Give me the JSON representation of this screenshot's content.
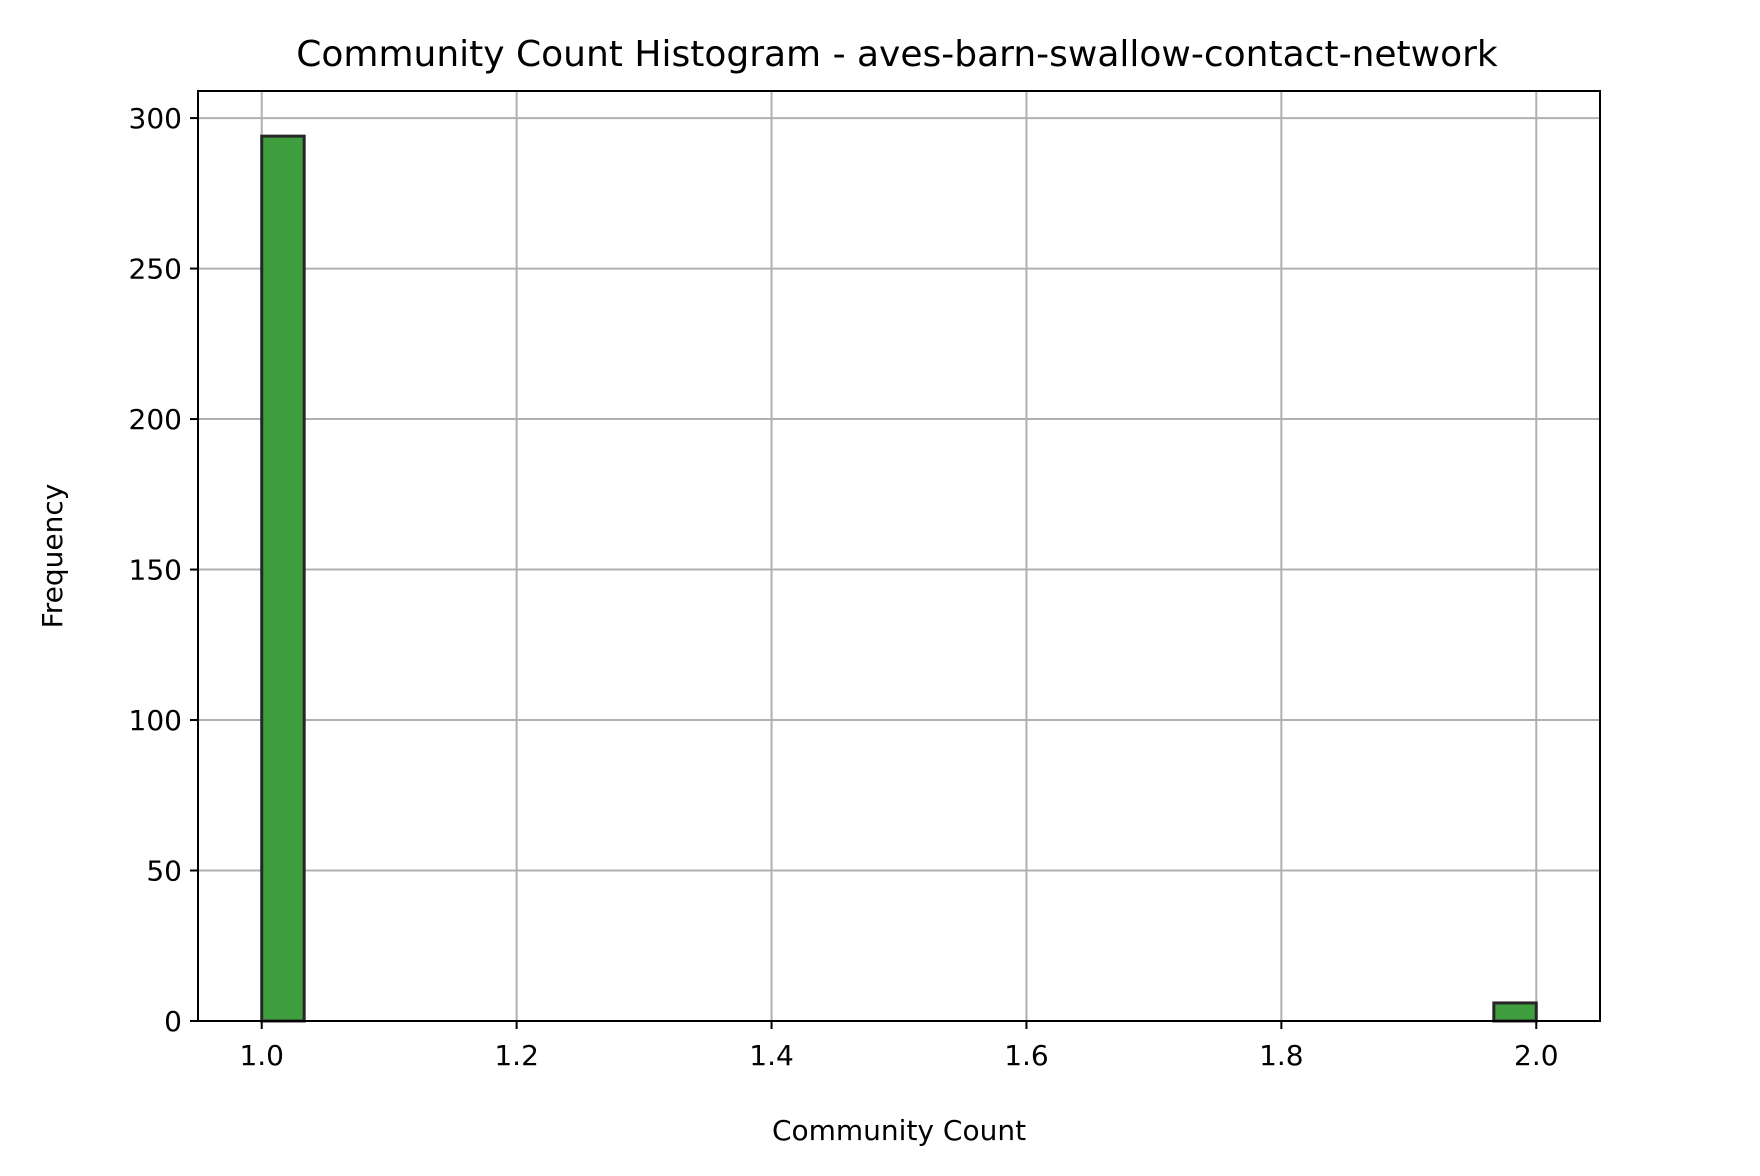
{
  "chart_data": {
    "type": "bar",
    "title": "Community Count Histogram - aves-barn-swallow-contact-network",
    "xlabel": "Community Count",
    "ylabel": "Frequency",
    "xlim": [
      0.95,
      2.05
    ],
    "ylim": [
      0,
      309
    ],
    "xticks": [
      1.0,
      1.2,
      1.4,
      1.6,
      1.8,
      2.0
    ],
    "xtick_labels": [
      "1.0",
      "1.2",
      "1.4",
      "1.6",
      "1.8",
      "2.0"
    ],
    "yticks": [
      0,
      50,
      100,
      150,
      200,
      250,
      300
    ],
    "ytick_labels": [
      "0",
      "50",
      "100",
      "150",
      "200",
      "250",
      "300"
    ],
    "grid": true,
    "bin_count": 30,
    "bins": [
      {
        "x_start": 1.0,
        "x_end": 1.0333,
        "count": 294
      },
      {
        "x_start": 1.9667,
        "x_end": 2.0,
        "count": 6
      }
    ],
    "bar_color": "#3f9f3f",
    "edge_color": "#262626"
  }
}
